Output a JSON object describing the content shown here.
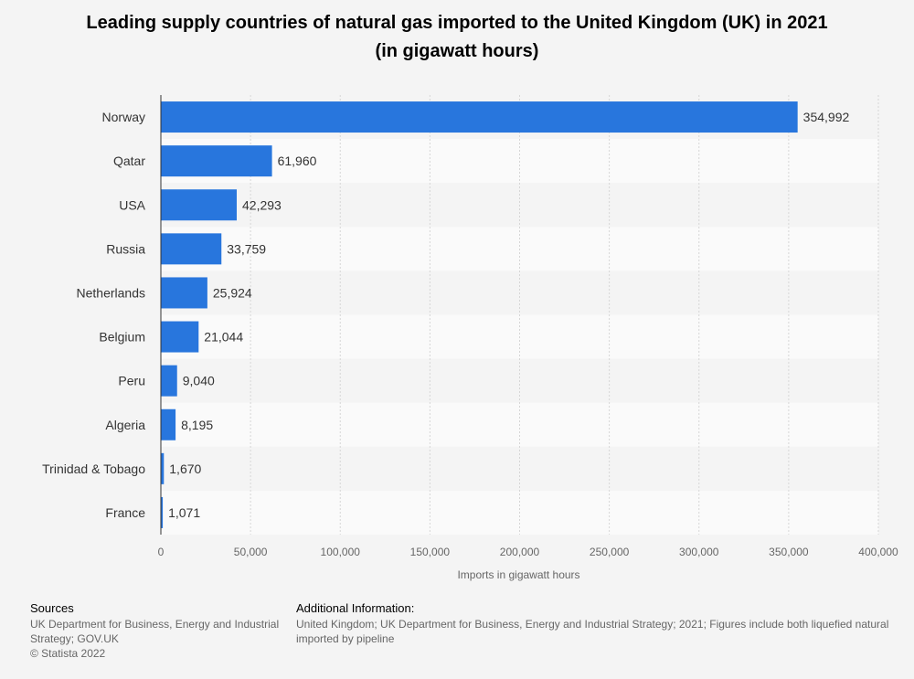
{
  "title": {
    "line1": "Leading supply countries of natural gas imported to the United Kingdom (UK) in 2021",
    "line2": "(in gigawatt hours)"
  },
  "chart_data": {
    "type": "bar",
    "orientation": "horizontal",
    "categories": [
      "Norway",
      "Qatar",
      "USA",
      "Russia",
      "Netherlands",
      "Belgium",
      "Peru",
      "Algeria",
      "Trinidad & Tobago",
      "France"
    ],
    "values": [
      354992,
      61960,
      42293,
      33759,
      25924,
      21044,
      9040,
      8195,
      1670,
      1071
    ],
    "value_labels": [
      "354,992",
      "61,960",
      "42,293",
      "33,759",
      "25,924",
      "21,044",
      "9,040",
      "8,195",
      "1,670",
      "1,071"
    ],
    "xlim": [
      0,
      400000
    ],
    "xticks": [
      0,
      50000,
      100000,
      150000,
      200000,
      250000,
      300000,
      350000,
      400000
    ],
    "xtick_labels": [
      "0",
      "50,000",
      "100,000",
      "150,000",
      "200,000",
      "250,000",
      "300,000",
      "350,000",
      "400,000"
    ],
    "xlabel": "Imports in gigawatt hours",
    "bar_color": "#2876dd",
    "grid": true
  },
  "footer": {
    "sources_head": "Sources",
    "sources_lines": [
      "UK Department for Business, Energy and Industrial",
      "Strategy; GOV.UK",
      "© Statista 2022"
    ],
    "addinfo_head": "Additional Information:",
    "addinfo_lines": [
      "United Kingdom; UK Department for Business, Energy and Industrial Strategy; 2021; Figures include both liquefied natural",
      "imported by pipeline"
    ]
  }
}
